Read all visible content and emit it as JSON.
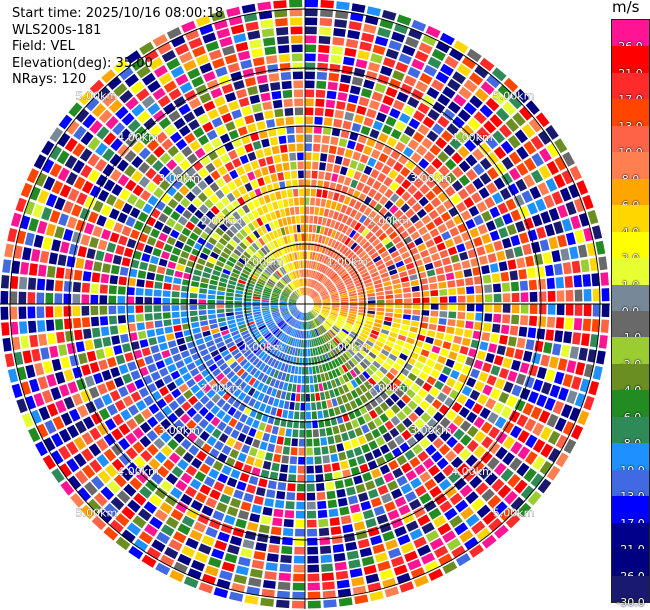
{
  "info": {
    "start_time": "Start time: 2025/10/16 08:00:18",
    "instrument": "WLS200s-181",
    "field": "Field: VEL",
    "elevation": "Elevation(deg): 35.00",
    "nrays": "NRays: 120"
  },
  "colorbar": {
    "unit": "m/s",
    "segments": [
      {
        "color": "#ff1493",
        "label": "26.0"
      },
      {
        "color": "#ff0000",
        "label": "21.0"
      },
      {
        "color": "#ff2a2a",
        "label": "17.0"
      },
      {
        "color": "#ff4500",
        "label": "13.0"
      },
      {
        "color": "#ff6347",
        "label": "10.0"
      },
      {
        "color": "#ff7f50",
        "label": "8.0"
      },
      {
        "color": "#ffa500",
        "label": "6.0"
      },
      {
        "color": "#ffd700",
        "label": "4.0"
      },
      {
        "color": "#ffff00",
        "label": "2.0"
      },
      {
        "color": "#e6ff33",
        "label": "1.0"
      },
      {
        "color": "#778899",
        "label": "0.0"
      },
      {
        "color": "#696969",
        "label": "-1.0"
      },
      {
        "color": "#9acd32",
        "label": "-2.0"
      },
      {
        "color": "#6b8e23",
        "label": "-4.0"
      },
      {
        "color": "#228b22",
        "label": "-6.0"
      },
      {
        "color": "#2e8b57",
        "label": "-8.0"
      },
      {
        "color": "#1e90ff",
        "label": "-10.0"
      },
      {
        "color": "#4169e1",
        "label": "-13.0"
      },
      {
        "color": "#0000ff",
        "label": "-17.0"
      },
      {
        "color": "#00008b",
        "label": "-21.0"
      },
      {
        "color": "#000080",
        "label": "-26.0"
      },
      {
        "color": "#191970",
        "label": "-30.0"
      }
    ]
  },
  "range_rings": [
    "1.00km",
    "2.00km",
    "3.00km",
    "4.00km",
    "5.00km"
  ]
}
